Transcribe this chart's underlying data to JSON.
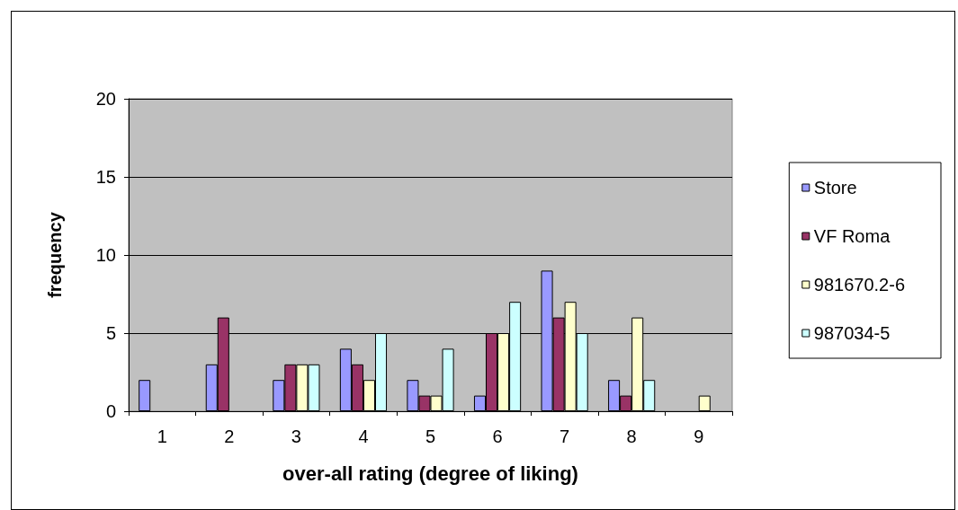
{
  "chart_data": {
    "type": "bar",
    "xlabel": "over-all rating (degree of liking)",
    "ylabel": "frequency",
    "categories": [
      "1",
      "2",
      "3",
      "4",
      "5",
      "6",
      "7",
      "8",
      "9"
    ],
    "series": [
      {
        "name": "Store",
        "color": "#9999ff",
        "values": [
          2,
          3,
          2,
          4,
          2,
          1,
          9,
          2,
          0
        ]
      },
      {
        "name": "VF Roma",
        "color": "#993366",
        "values": [
          0,
          6,
          3,
          3,
          1,
          5,
          6,
          1,
          0
        ]
      },
      {
        "name": "981670.2-6",
        "color": "#ffffcc",
        "values": [
          0,
          0,
          3,
          2,
          1,
          5,
          7,
          6,
          1
        ]
      },
      {
        "name": "987034-5",
        "color": "#ccffff",
        "values": [
          0,
          0,
          3,
          5,
          4,
          7,
          5,
          2,
          0
        ]
      }
    ],
    "ylim": [
      0,
      20
    ],
    "yticks": [
      0,
      5,
      10,
      15,
      20
    ],
    "grid": "y",
    "legend": "right"
  }
}
